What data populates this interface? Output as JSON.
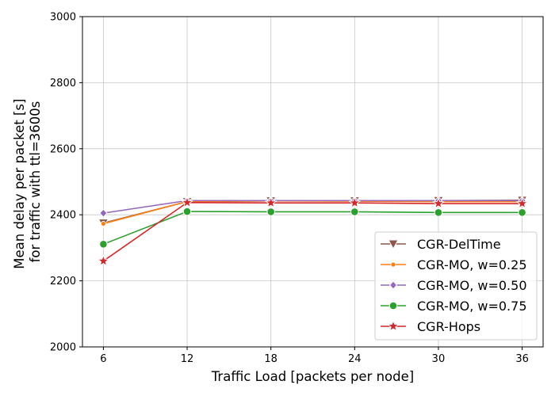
{
  "chart_data": {
    "type": "line",
    "xlabel": "Traffic Load [packets per node]",
    "ylabel_lines": [
      "Mean delay per packet [s]",
      "for traffic with ttl=3600s"
    ],
    "x": [
      6,
      12,
      18,
      24,
      30,
      36
    ],
    "x_ticks": [
      "6",
      "12",
      "18",
      "24",
      "30",
      "36"
    ],
    "y_ticks": [
      "2000",
      "2200",
      "2400",
      "2600",
      "2800",
      "3000"
    ],
    "xlim": [
      4.5,
      37.5
    ],
    "ylim": [
      2000,
      3000
    ],
    "grid": true,
    "legend_position": "lower-right",
    "series": [
      {
        "name": "CGR-DelTime",
        "color": "#8c564b",
        "marker": "triangle-down",
        "values": [
          2375,
          2440,
          2442,
          2442,
          2443,
          2444
        ]
      },
      {
        "name": "CGR-MO, w=0.25",
        "color": "#ff7f0e",
        "marker": "small-circle",
        "values": [
          2373,
          2440,
          2442,
          2441,
          2440,
          2440
        ]
      },
      {
        "name": "CGR-MO, w=0.50",
        "color": "#9467bd",
        "marker": "diamond",
        "values": [
          2405,
          2443,
          2443,
          2443,
          2443,
          2443
        ]
      },
      {
        "name": "CGR-MO, w=0.75",
        "color": "#2ca02c",
        "marker": "circle",
        "values": [
          2311,
          2410,
          2409,
          2409,
          2407,
          2407
        ]
      },
      {
        "name": "CGR-Hops",
        "color": "#d62728",
        "marker": "star",
        "values": [
          2260,
          2437,
          2436,
          2436,
          2434,
          2434
        ]
      }
    ]
  }
}
